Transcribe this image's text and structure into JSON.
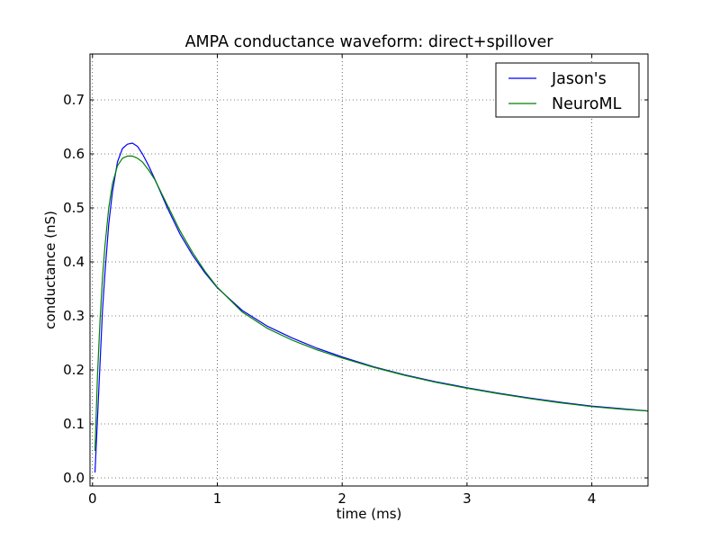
{
  "chart_data": {
    "type": "line",
    "title": "AMPA conductance waveform: direct+spillover",
    "xlabel": "time (ms)",
    "ylabel": "conductance (nS)",
    "xlim": [
      -0.02,
      4.45
    ],
    "ylim": [
      -0.015,
      0.785
    ],
    "grid": true,
    "legend_placement": "top-right",
    "x_ticks": [
      {
        "value": 0,
        "label": "0"
      },
      {
        "value": 1,
        "label": "1"
      },
      {
        "value": 2,
        "label": "2"
      },
      {
        "value": 3,
        "label": "3"
      },
      {
        "value": 4,
        "label": "4"
      }
    ],
    "y_ticks": [
      {
        "value": 0.0,
        "label": "0.0"
      },
      {
        "value": 0.1,
        "label": "0.1"
      },
      {
        "value": 0.2,
        "label": "0.2"
      },
      {
        "value": 0.3,
        "label": "0.3"
      },
      {
        "value": 0.4,
        "label": "0.4"
      },
      {
        "value": 0.5,
        "label": "0.5"
      },
      {
        "value": 0.6,
        "label": "0.6"
      },
      {
        "value": 0.7,
        "label": "0.7"
      }
    ],
    "series": [
      {
        "name": "Jason's",
        "color": "#0000ff",
        "x": [
          0.02,
          0.05,
          0.08,
          0.1,
          0.13,
          0.16,
          0.2,
          0.24,
          0.28,
          0.32,
          0.36,
          0.4,
          0.45,
          0.5,
          0.6,
          0.7,
          0.8,
          0.9,
          1.0,
          1.2,
          1.4,
          1.6,
          1.8,
          2.0,
          2.25,
          2.5,
          2.75,
          3.0,
          3.25,
          3.5,
          3.75,
          4.0,
          4.25,
          4.45
        ],
        "y": [
          0.01,
          0.16,
          0.31,
          0.38,
          0.47,
          0.53,
          0.585,
          0.61,
          0.618,
          0.62,
          0.614,
          0.6,
          0.578,
          0.553,
          0.5,
          0.452,
          0.413,
          0.38,
          0.352,
          0.31,
          0.281,
          0.259,
          0.24,
          0.224,
          0.206,
          0.191,
          0.178,
          0.167,
          0.157,
          0.148,
          0.14,
          0.133,
          0.128,
          0.124
        ]
      },
      {
        "name": "NeuroML",
        "color": "#008000",
        "x": [
          0.02,
          0.04,
          0.06,
          0.08,
          0.1,
          0.13,
          0.16,
          0.2,
          0.24,
          0.28,
          0.32,
          0.36,
          0.4,
          0.45,
          0.5,
          0.6,
          0.7,
          0.8,
          0.9,
          1.0,
          1.2,
          1.4,
          1.6,
          1.8,
          2.0,
          2.25,
          2.5,
          2.75,
          3.0,
          3.25,
          3.5,
          3.75,
          4.0,
          4.25,
          4.45
        ],
        "y": [
          0.05,
          0.19,
          0.29,
          0.37,
          0.43,
          0.5,
          0.545,
          0.578,
          0.592,
          0.596,
          0.596,
          0.592,
          0.585,
          0.57,
          0.552,
          0.505,
          0.458,
          0.418,
          0.383,
          0.353,
          0.307,
          0.277,
          0.255,
          0.237,
          0.222,
          0.205,
          0.19,
          0.177,
          0.166,
          0.156,
          0.147,
          0.139,
          0.132,
          0.127,
          0.124
        ]
      }
    ]
  }
}
